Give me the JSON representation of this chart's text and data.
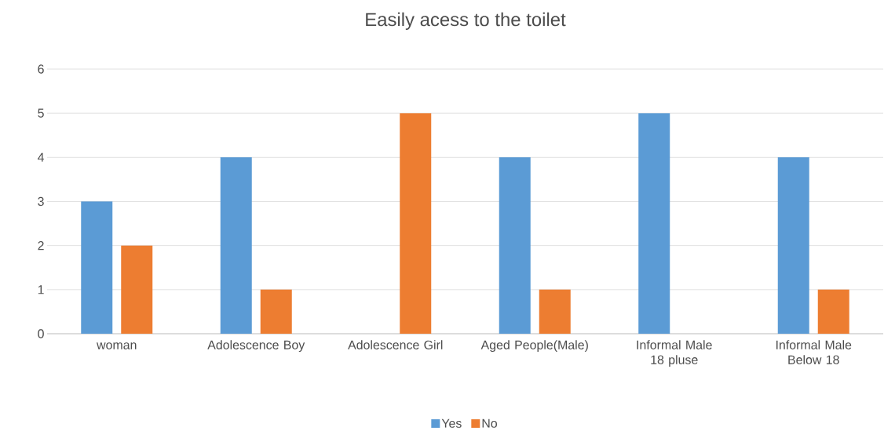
{
  "chart_data": {
    "type": "bar",
    "title": "Easily acess to the toilet",
    "categories": [
      "woman",
      "Adolescence Boy",
      "Adolescence Girl",
      "Aged People(Male)",
      "Informal Male 18 pluse",
      "Informal Male Below 18"
    ],
    "series": [
      {
        "name": "Yes",
        "color": "#5b9bd5",
        "values": [
          3,
          4,
          0,
          4,
          5,
          4
        ]
      },
      {
        "name": "No",
        "color": "#ed7d31",
        "values": [
          2,
          1,
          5,
          1,
          0,
          1
        ]
      }
    ],
    "ylim": [
      0,
      6
    ],
    "yticks": [
      0,
      1,
      2,
      3,
      4,
      5,
      6
    ],
    "grid": "y",
    "legend": "bottom"
  }
}
